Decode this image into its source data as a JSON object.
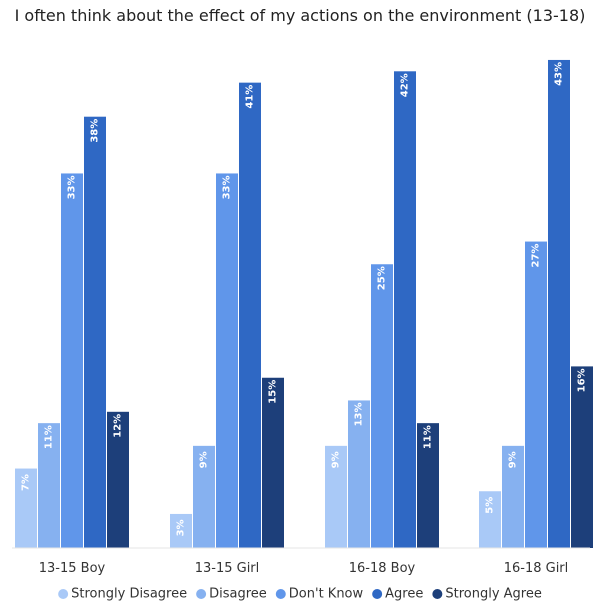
{
  "chart_data": {
    "type": "bar",
    "title": "I often think about the effect of my actions on the environment (13-18)",
    "xlabel": "",
    "ylabel": "",
    "ylim": [
      0,
      45
    ],
    "grid": false,
    "legend_position": "bottom",
    "value_suffix": "%",
    "categories": [
      "13-15 Boy",
      "13-15 Girl",
      "16-18 Boy",
      "16-18 Girl"
    ],
    "series": [
      {
        "name": "Strongly Disagree",
        "color": "#a9c9f7",
        "label_color": "#ffffff",
        "values": [
          7,
          3,
          9,
          5
        ]
      },
      {
        "name": "Disagree",
        "color": "#86b1f0",
        "label_color": "#ffffff",
        "values": [
          11,
          9,
          13,
          9
        ]
      },
      {
        "name": "Don't Know",
        "color": "#6096ea",
        "label_color": "#ffffff",
        "values": [
          33,
          33,
          25,
          27
        ]
      },
      {
        "name": "Agree",
        "color": "#2f68c4",
        "label_color": "#ffffff",
        "values": [
          38,
          41,
          42,
          43
        ]
      },
      {
        "name": "Strongly Agree",
        "color": "#1d3f7a",
        "label_color": "#ffffff",
        "values": [
          12,
          15,
          11,
          16
        ]
      }
    ]
  }
}
